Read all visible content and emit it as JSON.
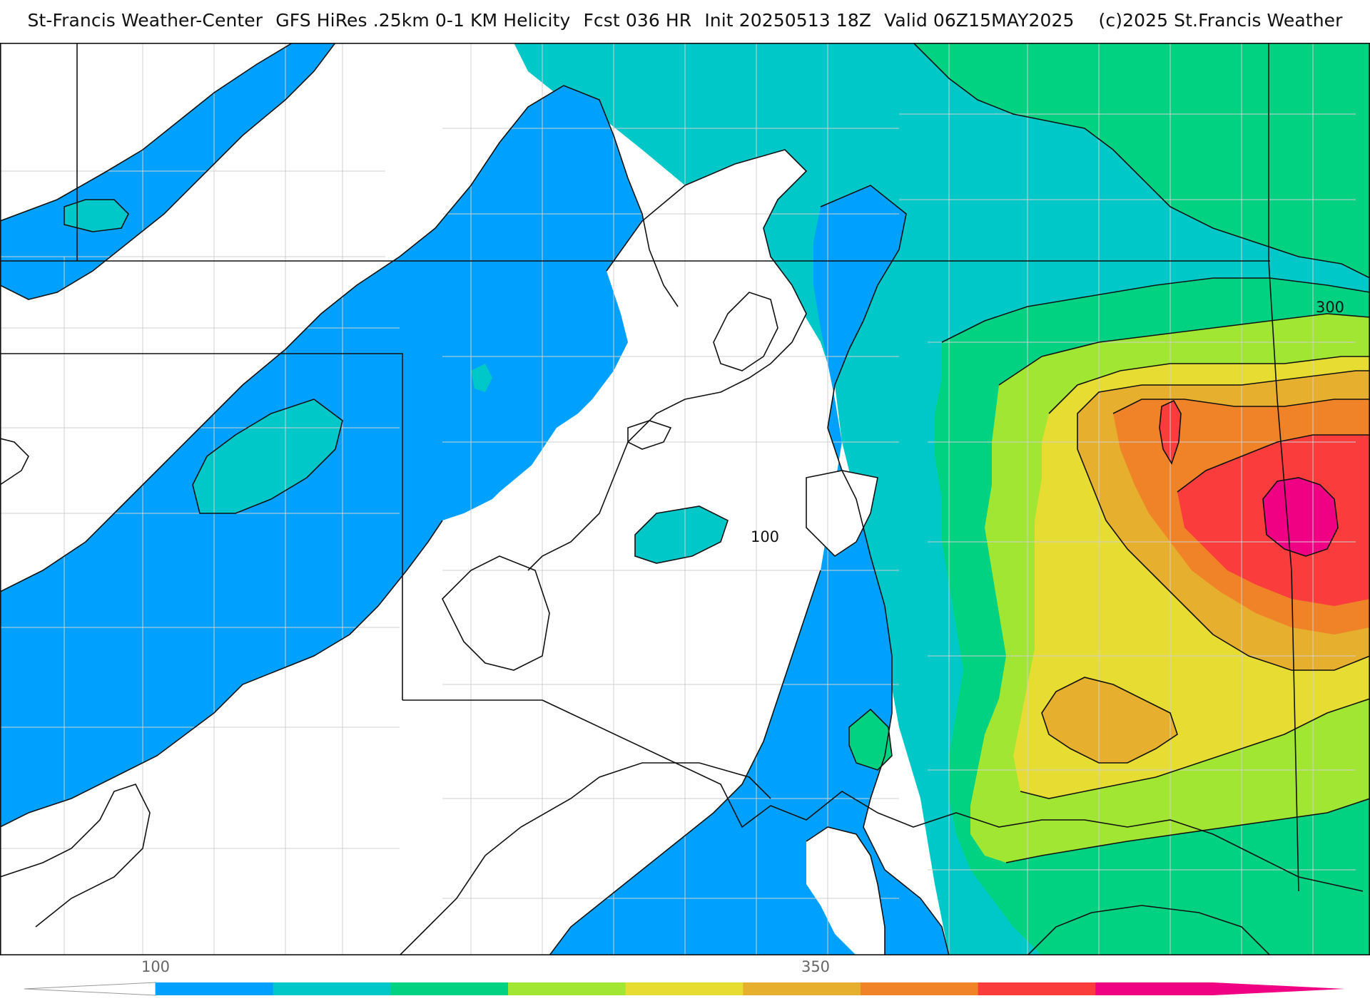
{
  "title": {
    "parts": [
      "St-Francis Weather-Center",
      "GFS HiRes .25km 0-1 KM Helicity",
      "Fcst 036 HR",
      "Init 20250513 18Z",
      "Valid 06Z15MAY2025",
      "(c)2025 St.Francis Weather"
    ]
  },
  "map": {
    "contour_labels": [
      "100",
      "300"
    ],
    "fill_colors": {
      "white": "#ffffff",
      "blue": "#00a0ff",
      "teal": "#00c8c8",
      "green": "#00d282",
      "lime": "#a0e632",
      "yellow": "#e6dc32",
      "gold": "#e6af2d",
      "orange": "#f08228",
      "red": "#fa3c3c",
      "magenta": "#f00082"
    }
  },
  "colorbar": {
    "tick_labels": [
      "100",
      "350"
    ],
    "colors": [
      "#00a0ff",
      "#00c8c8",
      "#00d282",
      "#a0e632",
      "#e6dc32",
      "#e6af2d",
      "#f08228",
      "#fa3c3c",
      "#f00082"
    ]
  }
}
